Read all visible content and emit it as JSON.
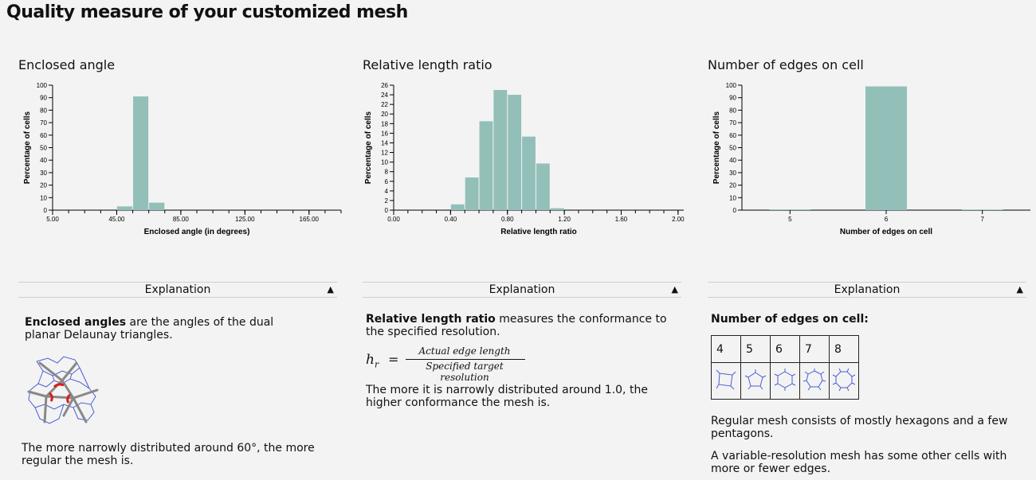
{
  "page": {
    "title": "Quality measure of your customized mesh"
  },
  "panels": [
    {
      "title": "Enclosed angle",
      "explanation_label": "Explanation",
      "text_bold": "Enclosed angles",
      "text_rest": " are the angles of the dual planar Delaunay triangles.",
      "text2": "The more narrowly distributed around 60°, the more regular the mesh is."
    },
    {
      "title": "Relative length ratio",
      "explanation_label": "Explanation",
      "text_bold": "Relative length ratio",
      "text_rest": " measures the conformance to the specified resolution.",
      "formula_lhs": "h",
      "formula_sub": "r",
      "formula_eq": "=",
      "formula_num": "Actual edge length",
      "formula_den": "Specified target resolution",
      "text2": "The more it is narrowly distributed around 1.0, the higher conformance the mesh is."
    },
    {
      "title": "Number of edges on cell",
      "explanation_label": "Explanation",
      "heading": "Number of edges on cell:",
      "table_headers": [
        "4",
        "5",
        "6",
        "7",
        "8"
      ],
      "text2": "Regular mesh consists of mostly hexagons and a few pentagons.",
      "text3": "A variable-resolution mesh has some other cells with more or fewer edges."
    }
  ],
  "chart_data": [
    {
      "type": "bar",
      "bar_color": "#93bfb9",
      "xlabel": "Enclosed angle (in degrees)",
      "ylabel": "Percentage of cells",
      "xlim": [
        5,
        185
      ],
      "ylim": [
        0,
        100
      ],
      "xticks": [
        5,
        45,
        85,
        125,
        165
      ],
      "xtick_labels": [
        "5.00",
        "45.00",
        "85.00",
        "125.00",
        "165.00"
      ],
      "yticks": [
        0,
        10,
        20,
        30,
        40,
        50,
        60,
        70,
        80,
        90,
        100
      ],
      "bins": [
        {
          "x0": 45,
          "x1": 55,
          "value": 3
        },
        {
          "x0": 55,
          "x1": 65,
          "value": 91
        },
        {
          "x0": 65,
          "x1": 75,
          "value": 6
        }
      ]
    },
    {
      "type": "bar",
      "bar_color": "#93bfb9",
      "xlabel": "Relative length ratio",
      "ylabel": "Percentage of cells",
      "xlim": [
        0,
        2.04
      ],
      "ylim": [
        0,
        26
      ],
      "xticks": [
        0,
        0.4,
        0.8,
        1.2,
        1.6,
        2.0
      ],
      "xtick_labels": [
        "0.00",
        "0.40",
        "0.80",
        "1.20",
        "1.60",
        "2.00"
      ],
      "yticks": [
        0,
        2,
        4,
        6,
        8,
        10,
        12,
        14,
        16,
        18,
        20,
        22,
        24,
        26
      ],
      "bins": [
        {
          "x0": 0.4,
          "x1": 0.5,
          "value": 1.2
        },
        {
          "x0": 0.5,
          "x1": 0.6,
          "value": 6.8
        },
        {
          "x0": 0.6,
          "x1": 0.7,
          "value": 18.5
        },
        {
          "x0": 0.7,
          "x1": 0.8,
          "value": 25
        },
        {
          "x0": 0.8,
          "x1": 0.9,
          "value": 24
        },
        {
          "x0": 0.9,
          "x1": 1.0,
          "value": 15.3
        },
        {
          "x0": 1.0,
          "x1": 1.1,
          "value": 9.7
        },
        {
          "x0": 1.1,
          "x1": 1.2,
          "value": 0.4
        }
      ]
    },
    {
      "type": "bar",
      "bar_color": "#93bfb9",
      "xlabel": "Number of edges on cell",
      "ylabel": "Percentage of cells",
      "ylim": [
        0,
        100
      ],
      "yticks": [
        0,
        10,
        20,
        30,
        40,
        50,
        60,
        70,
        80,
        90,
        100
      ],
      "categories": [
        "5",
        "6",
        "7"
      ],
      "values": [
        0.6,
        99,
        0.5
      ]
    }
  ]
}
